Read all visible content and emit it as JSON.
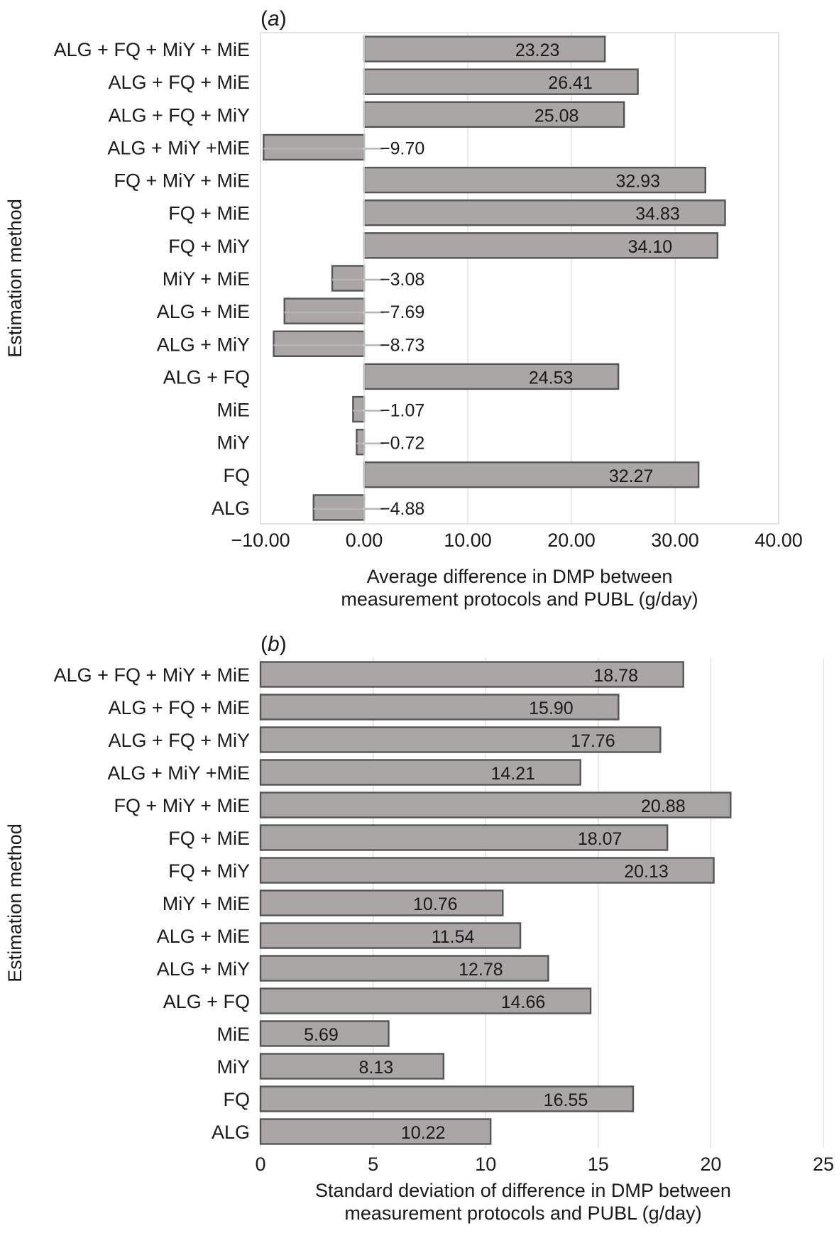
{
  "chart_data": [
    {
      "type": "bar",
      "orientation": "horizontal",
      "title": "(a)",
      "title_letter": "a",
      "xlabel": [
        "Average difference in DMP between",
        "measurement protocols and PUBL (g/day)"
      ],
      "ylabel": "Estimation method",
      "xlim": [
        -10,
        40
      ],
      "xticks": [
        -10,
        0,
        10,
        20,
        30,
        40
      ],
      "xtick_labels": [
        "−10.00",
        "0.00",
        "10.00",
        "20.00",
        "30.00",
        "40.00"
      ],
      "grid": true,
      "categories": [
        "ALG + FQ + MiY + MiE",
        "ALG + FQ + MiE",
        "ALG + FQ + MiY",
        "ALG + MiY +MiE",
        "FQ + MiY + MiE",
        "FQ + MiE",
        "FQ + MiY",
        "MiY + MiE",
        "ALG + MiE",
        "ALG + MiY",
        "ALG + FQ",
        "MiE",
        "MiY",
        "FQ",
        "ALG"
      ],
      "values": [
        23.23,
        26.41,
        25.08,
        -9.7,
        32.93,
        34.83,
        34.1,
        -3.08,
        -7.69,
        -8.73,
        24.53,
        -1.07,
        -0.72,
        32.27,
        -4.88
      ],
      "value_labels": [
        "23.23",
        "26.41",
        "25.08",
        "−9.70",
        "32.93",
        "34.83",
        "34.10",
        "−3.08",
        "−7.69",
        "−8.73",
        "24.53",
        "−1.07",
        "−0.72",
        "32.27",
        "−4.88"
      ],
      "colors": {
        "bar_fill": "#aba6a6",
        "bar_stroke": "#555555"
      }
    },
    {
      "type": "bar",
      "orientation": "horizontal",
      "title": "(b)",
      "title_letter": "b",
      "xlabel": [
        "Standard deviation of difference in DMP between",
        "measurement protocols and PUBL (g/day)"
      ],
      "ylabel": "Estimation method",
      "xlim": [
        0,
        25
      ],
      "xticks": [
        0,
        5,
        10,
        15,
        20,
        25
      ],
      "xtick_labels": [
        "0",
        "5",
        "10",
        "15",
        "20",
        "25"
      ],
      "grid": true,
      "categories": [
        "ALG + FQ + MiY + MiE",
        "ALG + FQ + MiE",
        "ALG + FQ + MiY",
        "ALG + MiY +MiE",
        "FQ + MiY + MiE",
        "FQ + MiE",
        "FQ + MiY",
        "MiY + MiE",
        "ALG + MiE",
        "ALG + MiY",
        "ALG + FQ",
        "MiE",
        "MiY",
        "FQ",
        "ALG"
      ],
      "values": [
        18.78,
        15.9,
        17.76,
        14.21,
        20.88,
        18.07,
        20.13,
        10.76,
        11.54,
        12.78,
        14.66,
        5.69,
        8.13,
        16.55,
        10.22
      ],
      "value_labels": [
        "18.78",
        "15.90",
        "17.76",
        "14.21",
        "20.88",
        "18.07",
        "20.13",
        "10.76",
        "11.54",
        "12.78",
        "14.66",
        "5.69",
        "8.13",
        "16.55",
        "10.22"
      ],
      "colors": {
        "bar_fill": "#aba6a6",
        "bar_stroke": "#555555"
      }
    }
  ]
}
